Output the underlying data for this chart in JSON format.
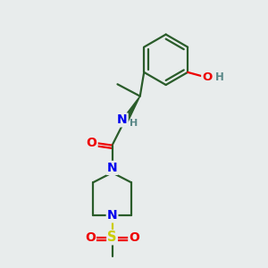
{
  "bg_color": "#e8ecec",
  "bond_color": "#2a5c2a",
  "bond_width": 1.6,
  "atom_colors": {
    "N": "#0000ee",
    "O": "#ee0000",
    "S": "#cccc00",
    "C": "#2a5c2a",
    "H": "#5a8888"
  },
  "fig_w": 3.0,
  "fig_h": 3.0,
  "dpi": 100,
  "xlim": [
    0,
    10
  ],
  "ylim": [
    0,
    10
  ]
}
